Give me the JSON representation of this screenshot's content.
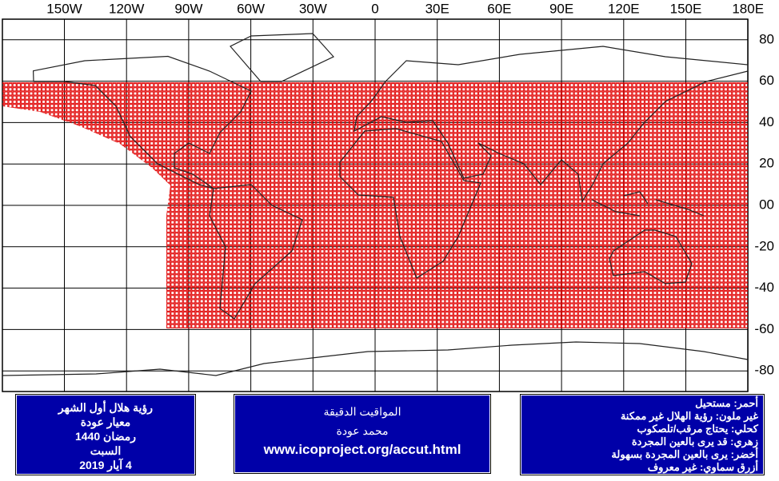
{
  "map": {
    "lon_ticks": [
      {
        "value": -150,
        "label": "150W"
      },
      {
        "value": -120,
        "label": "120W"
      },
      {
        "value": -90,
        "label": "90W"
      },
      {
        "value": -60,
        "label": "60W"
      },
      {
        "value": -30,
        "label": "30W"
      },
      0,
      {
        "value": 30,
        "label": "30E"
      },
      {
        "value": 60,
        "label": "60E"
      },
      {
        "value": 90,
        "label": "90E"
      },
      {
        "value": 120,
        "label": "120E"
      },
      {
        "value": 150,
        "label": "150E"
      },
      {
        "value": 180,
        "label": "180E"
      }
    ],
    "lat_ticks": [
      80,
      60,
      40,
      20,
      {
        "value": 0,
        "label": "00"
      },
      -20,
      -40,
      -60,
      -80
    ]
  },
  "info_box": {
    "lines": [
      "رؤية هلال أول الشهر",
      "معيار عودة",
      "رمضان 1440",
      "السبت",
      "4 آيار 2019"
    ]
  },
  "credit_box": {
    "lines": [
      "المواقيت الدقيقة",
      "محمد عودة",
      "www.icoproject.org/accut.html"
    ]
  },
  "legend_box": {
    "lines": [
      "أحمر: مستحيل",
      "غير ملون: رؤية الهلال غير ممكنة",
      "كحلي: يحتاج مرقب/تلصكوب",
      "زهري: قد يرى بالعين المجردة",
      "أخضر: يرى بالعين المجردة بسهولة",
      "أزرق سماوي: غير معروف"
    ]
  }
}
